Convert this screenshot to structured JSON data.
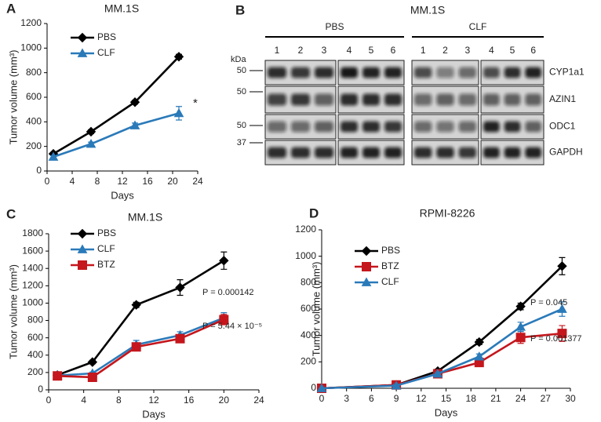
{
  "chart_data": [
    {
      "type": "line",
      "panel_label": "A",
      "title": "MM.1S",
      "x_label": "Days",
      "y_label": "Tumor volume (mm³)",
      "xlim": [
        0,
        24
      ],
      "xticks": [
        0,
        4,
        8,
        12,
        16,
        20,
        24
      ],
      "ylim": [
        0,
        1200
      ],
      "yticks": [
        0,
        200,
        400,
        600,
        800,
        1000,
        1200
      ],
      "legend": "upper left",
      "x": [
        1,
        7,
        14,
        21
      ],
      "series": [
        {
          "name": "PBS",
          "color": "#000000",
          "marker": "diamond",
          "values": [
            140,
            320,
            560,
            930
          ],
          "errors": [
            10,
            15,
            15,
            20
          ]
        },
        {
          "name": "CLF",
          "color": "#2a7ab9",
          "marker": "triangle",
          "values": [
            115,
            220,
            370,
            470
          ],
          "errors": [
            10,
            15,
            20,
            55
          ]
        }
      ],
      "annotations": [
        "*"
      ]
    },
    {
      "type": "line",
      "panel_label": "C",
      "title": "MM.1S",
      "x_label": "Days",
      "y_label": "Tumor volume (mm³)",
      "xlim": [
        0,
        24
      ],
      "xticks": [
        0,
        4,
        8,
        12,
        16,
        20,
        24
      ],
      "ylim": [
        0,
        1800
      ],
      "yticks": [
        0,
        200,
        400,
        600,
        800,
        1000,
        1200,
        1400,
        1600,
        1800
      ],
      "legend": "upper left",
      "x": [
        1,
        5,
        10,
        15,
        20
      ],
      "series": [
        {
          "name": "PBS",
          "color": "#000000",
          "marker": "diamond",
          "values": [
            170,
            320,
            980,
            1180,
            1490
          ],
          "errors": [
            15,
            20,
            30,
            90,
            100
          ]
        },
        {
          "name": "CLF",
          "color": "#2a7ab9",
          "marker": "triangle",
          "values": [
            165,
            190,
            520,
            630,
            830
          ],
          "errors": [
            10,
            15,
            50,
            40,
            60
          ]
        },
        {
          "name": "BTZ",
          "color": "#c4161c",
          "marker": "square",
          "values": [
            160,
            145,
            495,
            590,
            810
          ],
          "errors": [
            10,
            10,
            40,
            30,
            60
          ]
        }
      ],
      "annotations": [
        "P = 0.000142",
        "P = 5.44 × 10⁻⁵"
      ]
    },
    {
      "type": "line",
      "panel_label": "D",
      "title": "RPMI-8226",
      "x_label": "Days",
      "y_label": "Tumor volume (mm³)",
      "xlim": [
        0,
        30
      ],
      "xticks": [
        0,
        3,
        6,
        9,
        12,
        15,
        18,
        21,
        24,
        27,
        30
      ],
      "ylim": [
        0,
        1200
      ],
      "yticks": [
        0,
        200,
        400,
        600,
        800,
        1000,
        1200
      ],
      "legend": "upper left",
      "x": [
        0,
        9,
        14,
        19,
        24,
        29
      ],
      "series": [
        {
          "name": "PBS",
          "color": "#000000",
          "marker": "diamond",
          "values": [
            0,
            25,
            130,
            350,
            620,
            925
          ],
          "errors": [
            0,
            10,
            15,
            20,
            25,
            65
          ]
        },
        {
          "name": "BTZ",
          "color": "#c4161c",
          "marker": "square",
          "values": [
            0,
            25,
            110,
            195,
            385,
            415
          ],
          "errors": [
            0,
            10,
            10,
            15,
            45,
            60
          ]
        },
        {
          "name": "CLF",
          "color": "#2a7ab9",
          "marker": "triangle",
          "values": [
            0,
            20,
            110,
            240,
            465,
            600
          ],
          "errors": [
            0,
            10,
            10,
            20,
            35,
            55
          ]
        }
      ],
      "annotations": [
        "P = 0.045",
        "P = 0.001377"
      ]
    }
  ],
  "blot": {
    "panel_label": "B",
    "title": "MM.1S",
    "unit": "kDa",
    "groups": [
      {
        "name": "PBS",
        "lanes": [
          "1",
          "2",
          "3",
          "4",
          "5",
          "6"
        ]
      },
      {
        "name": "CLF",
        "lanes": [
          "1",
          "2",
          "3",
          "4",
          "5",
          "6"
        ]
      }
    ],
    "rows": [
      {
        "protein": "CYP1a1",
        "marker": "50"
      },
      {
        "protein": "AZIN1",
        "marker": "50"
      },
      {
        "protein": "ODC1",
        "marker": "50"
      },
      {
        "protein": "GAPDH",
        "marker": "37"
      }
    ]
  }
}
